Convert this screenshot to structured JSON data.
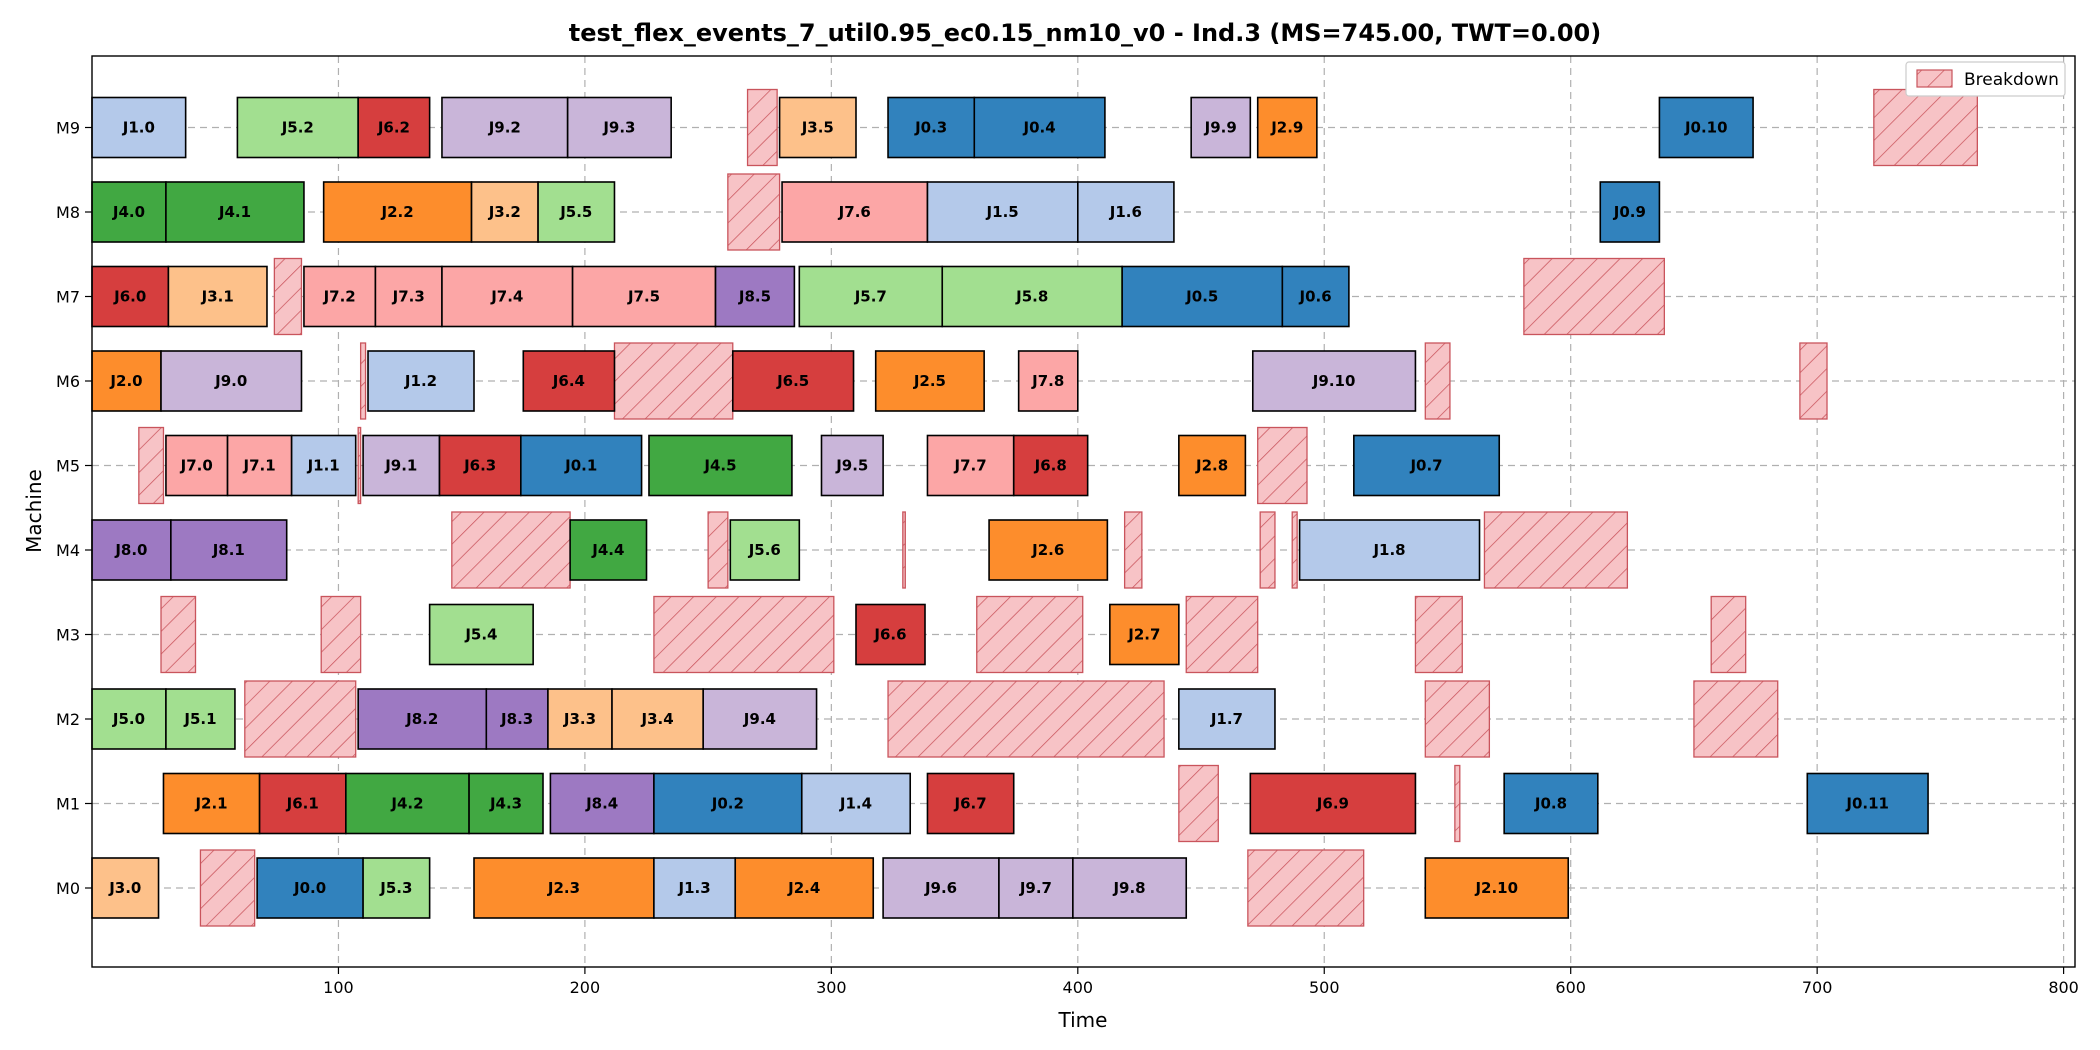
{
  "chart_data": {
    "type": "gantt",
    "title": "test_flex_events_7_util0.95_ec0.15_nm10_v0 - Ind.3 (MS=745.00, TWT=0.00)",
    "xlabel": "Time",
    "ylabel": "Machine",
    "xlim": [
      0,
      800
    ],
    "xticks": [
      100,
      200,
      300,
      400,
      500,
      600,
      700,
      800
    ],
    "machines": [
      "M0",
      "M1",
      "M2",
      "M3",
      "M4",
      "M5",
      "M6",
      "M7",
      "M8",
      "M9"
    ],
    "grid": true,
    "legend": {
      "position": "top-right",
      "label": "Breakdown"
    },
    "job_colors": {
      "J0": "#3182bd",
      "J1": "#b4c9ea",
      "J2": "#fd8d2c",
      "J3": "#fdc18a",
      "J4": "#41a842",
      "J5": "#a2df90",
      "J6": "#d63e3e",
      "J7": "#fca6a6",
      "J8": "#9d79c2",
      "J9": "#c9b5d9"
    },
    "breakdown_color": "#f7c3c6",
    "breakdown_edge": "#c9545c",
    "operations": [
      {
        "label": "J3.0",
        "job": "J3",
        "machine": "M0",
        "start": 0,
        "end": 27
      },
      {
        "label": "J0.0",
        "job": "J0",
        "machine": "M0",
        "start": 67,
        "end": 110
      },
      {
        "label": "J5.3",
        "job": "J5",
        "machine": "M0",
        "start": 110,
        "end": 137
      },
      {
        "label": "J2.3",
        "job": "J2",
        "machine": "M0",
        "start": 155,
        "end": 228
      },
      {
        "label": "J1.3",
        "job": "J1",
        "machine": "M0",
        "start": 228,
        "end": 261
      },
      {
        "label": "J2.4",
        "job": "J2",
        "machine": "M0",
        "start": 261,
        "end": 317
      },
      {
        "label": "J9.6",
        "job": "J9",
        "machine": "M0",
        "start": 321,
        "end": 368
      },
      {
        "label": "J9.7",
        "job": "J9",
        "machine": "M0",
        "start": 368,
        "end": 398
      },
      {
        "label": "J9.8",
        "job": "J9",
        "machine": "M0",
        "start": 398,
        "end": 444
      },
      {
        "label": "J2.10",
        "job": "J2",
        "machine": "M0",
        "start": 541,
        "end": 599
      },
      {
        "label": "J2.1",
        "job": "J2",
        "machine": "M1",
        "start": 29,
        "end": 68
      },
      {
        "label": "J6.1",
        "job": "J6",
        "machine": "M1",
        "start": 68,
        "end": 103
      },
      {
        "label": "J4.2",
        "job": "J4",
        "machine": "M1",
        "start": 103,
        "end": 153
      },
      {
        "label": "J4.3",
        "job": "J4",
        "machine": "M1",
        "start": 153,
        "end": 183
      },
      {
        "label": "J8.4",
        "job": "J8",
        "machine": "M1",
        "start": 186,
        "end": 228
      },
      {
        "label": "J0.2",
        "job": "J0",
        "machine": "M1",
        "start": 228,
        "end": 288
      },
      {
        "label": "J1.4",
        "job": "J1",
        "machine": "M1",
        "start": 288,
        "end": 332
      },
      {
        "label": "J6.7",
        "job": "J6",
        "machine": "M1",
        "start": 339,
        "end": 374
      },
      {
        "label": "J6.9",
        "job": "J6",
        "machine": "M1",
        "start": 470,
        "end": 537
      },
      {
        "label": "J0.8",
        "job": "J0",
        "machine": "M1",
        "start": 573,
        "end": 611
      },
      {
        "label": "J0.11",
        "job": "J0",
        "machine": "M1",
        "start": 696,
        "end": 745
      },
      {
        "label": "J5.0",
        "job": "J5",
        "machine": "M2",
        "start": 0,
        "end": 30
      },
      {
        "label": "J5.1",
        "job": "J5",
        "machine": "M2",
        "start": 30,
        "end": 58
      },
      {
        "label": "J8.2",
        "job": "J8",
        "machine": "M2",
        "start": 108,
        "end": 160
      },
      {
        "label": "J8.3",
        "job": "J8",
        "machine": "M2",
        "start": 160,
        "end": 185
      },
      {
        "label": "J3.3",
        "job": "J3",
        "machine": "M2",
        "start": 185,
        "end": 211
      },
      {
        "label": "J3.4",
        "job": "J3",
        "machine": "M2",
        "start": 211,
        "end": 248
      },
      {
        "label": "J9.4",
        "job": "J9",
        "machine": "M2",
        "start": 248,
        "end": 294
      },
      {
        "label": "J1.7",
        "job": "J1",
        "machine": "M2",
        "start": 441,
        "end": 480
      },
      {
        "label": "J5.4",
        "job": "J5",
        "machine": "M3",
        "start": 137,
        "end": 179
      },
      {
        "label": "J6.6",
        "job": "J6",
        "machine": "M3",
        "start": 310,
        "end": 338
      },
      {
        "label": "J2.7",
        "job": "J2",
        "machine": "M3",
        "start": 413,
        "end": 441
      },
      {
        "label": "J8.0",
        "job": "J8",
        "machine": "M4",
        "start": 0,
        "end": 32
      },
      {
        "label": "J8.1",
        "job": "J8",
        "machine": "M4",
        "start": 32,
        "end": 79
      },
      {
        "label": "J4.4",
        "job": "J4",
        "machine": "M4",
        "start": 194,
        "end": 225
      },
      {
        "label": "J5.6",
        "job": "J5",
        "machine": "M4",
        "start": 259,
        "end": 287
      },
      {
        "label": "J2.6",
        "job": "J2",
        "machine": "M4",
        "start": 364,
        "end": 412
      },
      {
        "label": "J1.8",
        "job": "J1",
        "machine": "M4",
        "start": 490,
        "end": 563
      },
      {
        "label": "J7.0",
        "job": "J7",
        "machine": "M5",
        "start": 30,
        "end": 55
      },
      {
        "label": "J7.1",
        "job": "J7",
        "machine": "M5",
        "start": 55,
        "end": 81
      },
      {
        "label": "J1.1",
        "job": "J1",
        "machine": "M5",
        "start": 81,
        "end": 107
      },
      {
        "label": "J9.1",
        "job": "J9",
        "machine": "M5",
        "start": 110,
        "end": 141
      },
      {
        "label": "J6.3",
        "job": "J6",
        "machine": "M5",
        "start": 141,
        "end": 174
      },
      {
        "label": "J0.1",
        "job": "J0",
        "machine": "M5",
        "start": 174,
        "end": 223
      },
      {
        "label": "J4.5",
        "job": "J4",
        "machine": "M5",
        "start": 226,
        "end": 284
      },
      {
        "label": "J9.5",
        "job": "J9",
        "machine": "M5",
        "start": 296,
        "end": 321
      },
      {
        "label": "J7.7",
        "job": "J7",
        "machine": "M5",
        "start": 339,
        "end": 374
      },
      {
        "label": "J6.8",
        "job": "J6",
        "machine": "M5",
        "start": 374,
        "end": 404
      },
      {
        "label": "J2.8",
        "job": "J2",
        "machine": "M5",
        "start": 441,
        "end": 468
      },
      {
        "label": "J0.7",
        "job": "J0",
        "machine": "M5",
        "start": 512,
        "end": 571
      },
      {
        "label": "J2.0",
        "job": "J2",
        "machine": "M6",
        "start": 0,
        "end": 28
      },
      {
        "label": "J9.0",
        "job": "J9",
        "machine": "M6",
        "start": 28,
        "end": 85
      },
      {
        "label": "J1.2",
        "job": "J1",
        "machine": "M6",
        "start": 112,
        "end": 155
      },
      {
        "label": "J6.4",
        "job": "J6",
        "machine": "M6",
        "start": 175,
        "end": 212
      },
      {
        "label": "J6.5",
        "job": "J6",
        "machine": "M6",
        "start": 260,
        "end": 309
      },
      {
        "label": "J2.5",
        "job": "J2",
        "machine": "M6",
        "start": 318,
        "end": 362
      },
      {
        "label": "J7.8",
        "job": "J7",
        "machine": "M6",
        "start": 376,
        "end": 400
      },
      {
        "label": "J9.10",
        "job": "J9",
        "machine": "M6",
        "start": 471,
        "end": 537
      },
      {
        "label": "J6.0",
        "job": "J6",
        "machine": "M7",
        "start": 0,
        "end": 31
      },
      {
        "label": "J3.1",
        "job": "J3",
        "machine": "M7",
        "start": 31,
        "end": 71
      },
      {
        "label": "J7.2",
        "job": "J7",
        "machine": "M7",
        "start": 86,
        "end": 115
      },
      {
        "label": "J7.3",
        "job": "J7",
        "machine": "M7",
        "start": 115,
        "end": 142
      },
      {
        "label": "J7.4",
        "job": "J7",
        "machine": "M7",
        "start": 142,
        "end": 195
      },
      {
        "label": "J7.5",
        "job": "J7",
        "machine": "M7",
        "start": 195,
        "end": 253
      },
      {
        "label": "J8.5",
        "job": "J8",
        "machine": "M7",
        "start": 253,
        "end": 285
      },
      {
        "label": "J5.7",
        "job": "J5",
        "machine": "M7",
        "start": 287,
        "end": 345
      },
      {
        "label": "J5.8",
        "job": "J5",
        "machine": "M7",
        "start": 345,
        "end": 418
      },
      {
        "label": "J0.5",
        "job": "J0",
        "machine": "M7",
        "start": 418,
        "end": 483
      },
      {
        "label": "J0.6",
        "job": "J0",
        "machine": "M7",
        "start": 483,
        "end": 510
      },
      {
        "label": "J4.0",
        "job": "J4",
        "machine": "M8",
        "start": 0,
        "end": 30
      },
      {
        "label": "J4.1",
        "job": "J4",
        "machine": "M8",
        "start": 30,
        "end": 86
      },
      {
        "label": "J2.2",
        "job": "J2",
        "machine": "M8",
        "start": 94,
        "end": 154
      },
      {
        "label": "J3.2",
        "job": "J3",
        "machine": "M8",
        "start": 154,
        "end": 181
      },
      {
        "label": "J5.5",
        "job": "J5",
        "machine": "M8",
        "start": 181,
        "end": 212
      },
      {
        "label": "J7.6",
        "job": "J7",
        "machine": "M8",
        "start": 280,
        "end": 339
      },
      {
        "label": "J1.5",
        "job": "J1",
        "machine": "M8",
        "start": 339,
        "end": 400
      },
      {
        "label": "J1.6",
        "job": "J1",
        "machine": "M8",
        "start": 400,
        "end": 439
      },
      {
        "label": "J0.9",
        "job": "J0",
        "machine": "M8",
        "start": 612,
        "end": 636
      },
      {
        "label": "J1.0",
        "job": "J1",
        "machine": "M9",
        "start": 0,
        "end": 38
      },
      {
        "label": "J5.2",
        "job": "J5",
        "machine": "M9",
        "start": 59,
        "end": 108
      },
      {
        "label": "J6.2",
        "job": "J6",
        "machine": "M9",
        "start": 108,
        "end": 137
      },
      {
        "label": "J9.2",
        "job": "J9",
        "machine": "M9",
        "start": 142,
        "end": 193
      },
      {
        "label": "J9.3",
        "job": "J9",
        "machine": "M9",
        "start": 193,
        "end": 235
      },
      {
        "label": "J3.5",
        "job": "J3",
        "machine": "M9",
        "start": 279,
        "end": 310
      },
      {
        "label": "J0.3",
        "job": "J0",
        "machine": "M9",
        "start": 323,
        "end": 358
      },
      {
        "label": "J0.4",
        "job": "J0",
        "machine": "M9",
        "start": 358,
        "end": 411
      },
      {
        "label": "J9.9",
        "job": "J9",
        "machine": "M9",
        "start": 446,
        "end": 470
      },
      {
        "label": "J2.9",
        "job": "J2",
        "machine": "M9",
        "start": 473,
        "end": 497
      },
      {
        "label": "J0.10",
        "job": "J0",
        "machine": "M9",
        "start": 636,
        "end": 674
      }
    ],
    "breakdowns": [
      {
        "machine": "M0",
        "start": 44,
        "end": 66
      },
      {
        "machine": "M0",
        "start": 469,
        "end": 516
      },
      {
        "machine": "M1",
        "start": 441,
        "end": 457
      },
      {
        "machine": "M1",
        "start": 553,
        "end": 555
      },
      {
        "machine": "M2",
        "start": 62,
        "end": 107
      },
      {
        "machine": "M2",
        "start": 323,
        "end": 435
      },
      {
        "machine": "M2",
        "start": 541,
        "end": 567
      },
      {
        "machine": "M2",
        "start": 650,
        "end": 684
      },
      {
        "machine": "M3",
        "start": 28,
        "end": 42
      },
      {
        "machine": "M3",
        "start": 93,
        "end": 109
      },
      {
        "machine": "M3",
        "start": 228,
        "end": 301
      },
      {
        "machine": "M3",
        "start": 359,
        "end": 402
      },
      {
        "machine": "M3",
        "start": 444,
        "end": 473
      },
      {
        "machine": "M3",
        "start": 537,
        "end": 556
      },
      {
        "machine": "M3",
        "start": 657,
        "end": 671
      },
      {
        "machine": "M4",
        "start": 146,
        "end": 194
      },
      {
        "machine": "M4",
        "start": 250,
        "end": 258
      },
      {
        "machine": "M4",
        "start": 329,
        "end": 330
      },
      {
        "machine": "M4",
        "start": 419,
        "end": 426
      },
      {
        "machine": "M4",
        "start": 474,
        "end": 480
      },
      {
        "machine": "M4",
        "start": 487,
        "end": 489
      },
      {
        "machine": "M4",
        "start": 565,
        "end": 623
      },
      {
        "machine": "M5",
        "start": 19,
        "end": 29
      },
      {
        "machine": "M5",
        "start": 108,
        "end": 109
      },
      {
        "machine": "M5",
        "start": 473,
        "end": 493
      },
      {
        "machine": "M6",
        "start": 109,
        "end": 111
      },
      {
        "machine": "M6",
        "start": 212,
        "end": 260
      },
      {
        "machine": "M6",
        "start": 541,
        "end": 551
      },
      {
        "machine": "M6",
        "start": 693,
        "end": 704
      },
      {
        "machine": "M7",
        "start": 74,
        "end": 85
      },
      {
        "machine": "M7",
        "start": 581,
        "end": 638
      },
      {
        "machine": "M8",
        "start": 258,
        "end": 279
      },
      {
        "machine": "M9",
        "start": 266,
        "end": 278
      },
      {
        "machine": "M9",
        "start": 723,
        "end": 765
      }
    ]
  }
}
